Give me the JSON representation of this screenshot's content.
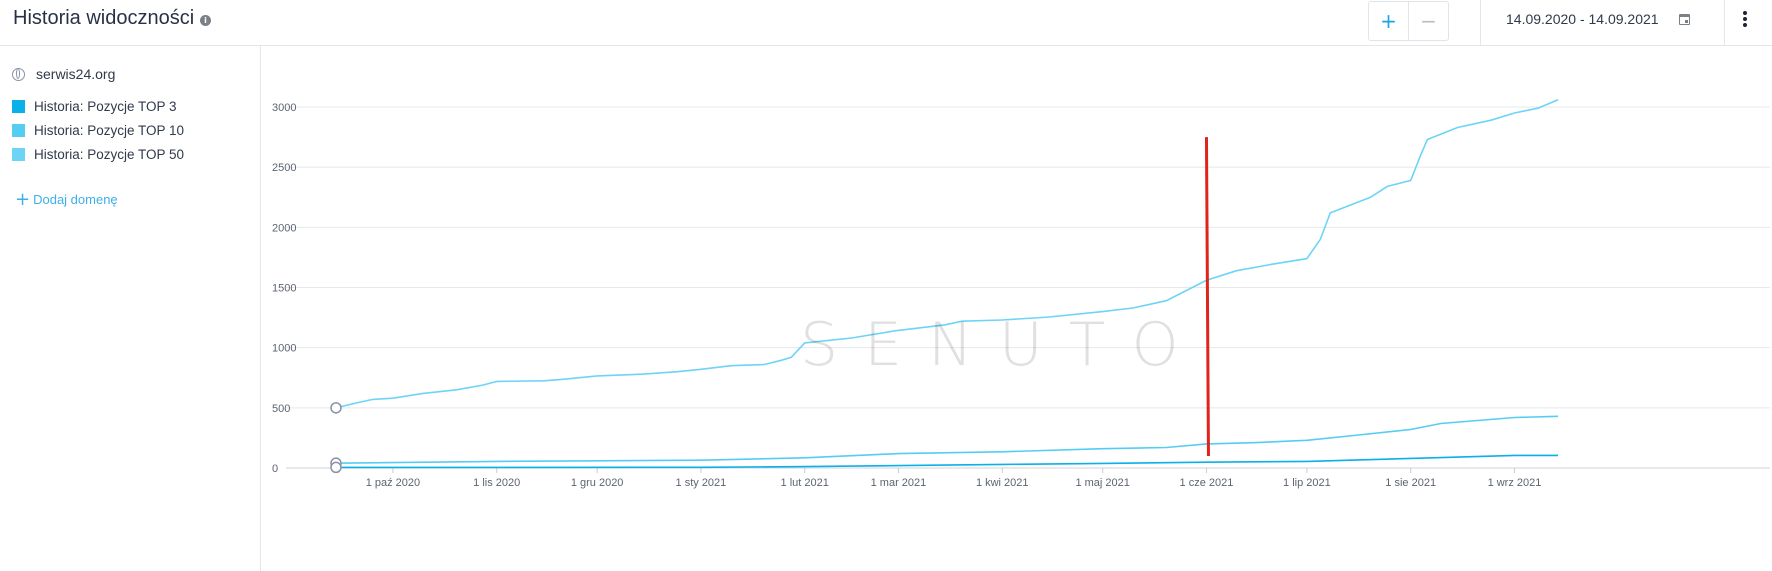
{
  "header": {
    "title": "Historia widoczności",
    "info_icon": "info-icon",
    "zoom_in_label": "+",
    "zoom_out_label": "−",
    "date_range": "14.09.2020 - 14.09.2021",
    "calendar_icon": "calendar-icon",
    "menu_icon": "kebab-menu-icon"
  },
  "sidebar": {
    "domain": "serwis24.org",
    "legend": [
      {
        "label": "Historia: Pozycje TOP 3",
        "color": "#0ab0e8"
      },
      {
        "label": "Historia: Pozycje TOP 10",
        "color": "#55cdf3"
      },
      {
        "label": "Historia: Pozycje TOP 50",
        "color": "#6dd4f6"
      }
    ],
    "add_domain_label": "Dodaj domenę"
  },
  "watermark": "SENUTO",
  "chart_data": {
    "type": "line",
    "title": "",
    "xlabel": "",
    "ylabel": "",
    "x_start": "2020-09-14",
    "x_end": "2021-09-14",
    "x_ticks": [
      {
        "date": "2020-10-01",
        "label": "1 paź 2020"
      },
      {
        "date": "2020-11-01",
        "label": "1 lis 2020"
      },
      {
        "date": "2020-12-01",
        "label": "1 gru 2020"
      },
      {
        "date": "2021-01-01",
        "label": "1 sty 2021"
      },
      {
        "date": "2021-02-01",
        "label": "1 lut 2021"
      },
      {
        "date": "2021-03-01",
        "label": "1 mar 2021"
      },
      {
        "date": "2021-04-01",
        "label": "1 kwi 2021"
      },
      {
        "date": "2021-05-01",
        "label": "1 maj 2021"
      },
      {
        "date": "2021-06-01",
        "label": "1 cze 2021"
      },
      {
        "date": "2021-07-01",
        "label": "1 lip 2021"
      },
      {
        "date": "2021-08-01",
        "label": "1 sie 2021"
      },
      {
        "date": "2021-09-01",
        "label": "1 wrz 2021"
      }
    ],
    "ylim": [
      0,
      3000
    ],
    "y_ticks": [
      0,
      500,
      1000,
      1500,
      2000,
      2500,
      3000
    ],
    "grid": true,
    "series": [
      {
        "name": "Historia: Pozycje TOP 50",
        "color": "#6dd4f6",
        "points": [
          [
            "2020-09-14",
            500
          ],
          [
            "2020-09-20",
            540
          ],
          [
            "2020-09-25",
            570
          ],
          [
            "2020-10-01",
            580
          ],
          [
            "2020-10-10",
            620
          ],
          [
            "2020-10-20",
            650
          ],
          [
            "2020-10-28",
            690
          ],
          [
            "2020-11-01",
            720
          ],
          [
            "2020-11-15",
            725
          ],
          [
            "2020-11-20",
            735
          ],
          [
            "2020-12-01",
            765
          ],
          [
            "2020-12-15",
            780
          ],
          [
            "2020-12-25",
            800
          ],
          [
            "2021-01-01",
            820
          ],
          [
            "2021-01-10",
            850
          ],
          [
            "2021-01-20",
            860
          ],
          [
            "2021-01-25",
            895
          ],
          [
            "2021-01-28",
            920
          ],
          [
            "2021-02-01",
            1040
          ],
          [
            "2021-02-15",
            1080
          ],
          [
            "2021-02-28",
            1140
          ],
          [
            "2021-03-15",
            1190
          ],
          [
            "2021-03-20",
            1220
          ],
          [
            "2021-04-01",
            1230
          ],
          [
            "2021-04-15",
            1255
          ],
          [
            "2021-05-01",
            1300
          ],
          [
            "2021-05-10",
            1330
          ],
          [
            "2021-05-20",
            1390
          ],
          [
            "2021-06-01",
            1560
          ],
          [
            "2021-06-10",
            1640
          ],
          [
            "2021-06-20",
            1690
          ],
          [
            "2021-07-01",
            1740
          ],
          [
            "2021-07-05",
            1900
          ],
          [
            "2021-07-08",
            2120
          ],
          [
            "2021-07-20",
            2250
          ],
          [
            "2021-07-25",
            2340
          ],
          [
            "2021-08-01",
            2390
          ],
          [
            "2021-08-04",
            2600
          ],
          [
            "2021-08-06",
            2730
          ],
          [
            "2021-08-15",
            2830
          ],
          [
            "2021-08-25",
            2890
          ],
          [
            "2021-09-01",
            2950
          ],
          [
            "2021-09-08",
            2990
          ],
          [
            "2021-09-14",
            3060
          ]
        ]
      },
      {
        "name": "Historia: Pozycje TOP 10",
        "color": "#55cdf3",
        "points": [
          [
            "2020-09-14",
            40
          ],
          [
            "2020-10-01",
            45
          ],
          [
            "2020-11-01",
            55
          ],
          [
            "2020-12-01",
            60
          ],
          [
            "2021-01-01",
            65
          ],
          [
            "2021-02-01",
            85
          ],
          [
            "2021-03-01",
            120
          ],
          [
            "2021-04-01",
            135
          ],
          [
            "2021-05-01",
            160
          ],
          [
            "2021-05-20",
            170
          ],
          [
            "2021-06-01",
            200
          ],
          [
            "2021-06-15",
            210
          ],
          [
            "2021-07-01",
            230
          ],
          [
            "2021-07-15",
            270
          ],
          [
            "2021-08-01",
            320
          ],
          [
            "2021-08-10",
            370
          ],
          [
            "2021-09-01",
            420
          ],
          [
            "2021-09-14",
            430
          ]
        ]
      },
      {
        "name": "Historia: Pozycje TOP 3",
        "color": "#0ab0e8",
        "points": [
          [
            "2020-09-14",
            5
          ],
          [
            "2020-11-01",
            5
          ],
          [
            "2021-01-01",
            6
          ],
          [
            "2021-02-01",
            12
          ],
          [
            "2021-03-01",
            20
          ],
          [
            "2021-04-01",
            30
          ],
          [
            "2021-05-01",
            38
          ],
          [
            "2021-06-01",
            48
          ],
          [
            "2021-07-01",
            55
          ],
          [
            "2021-08-01",
            80
          ],
          [
            "2021-09-01",
            105
          ],
          [
            "2021-09-14",
            105
          ]
        ]
      }
    ],
    "annotation": {
      "date": "2021-06-01",
      "from": 100,
      "to": 2750,
      "color": "#e0231b"
    }
  }
}
